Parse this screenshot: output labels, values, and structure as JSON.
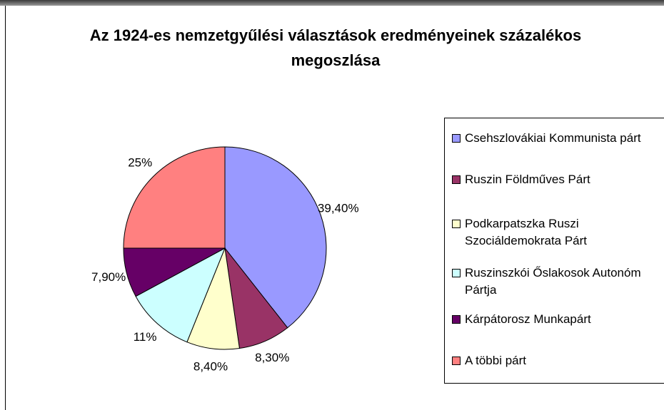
{
  "chart_data": {
    "type": "pie",
    "title": "Az 1924-es nemzetgyűlési választások eredményeinek százalékos megoszlása",
    "categories": [
      "Csehszlovákiai Kommunista párt",
      "Ruszin Földműves Párt",
      "Podkarpatszka Ruszi Szociáldemokrata Párt",
      "Ruszinszkói Őslakosok Autonóm Pártja",
      "Kárpátorosz Munkapárt",
      "A többi párt"
    ],
    "values": [
      39.4,
      8.3,
      8.4,
      11,
      7.9,
      25
    ],
    "value_labels": [
      "39,40%",
      "8,30%",
      "8,40%",
      "11%",
      "7,90%",
      "25%"
    ],
    "colors": [
      "#9999ff",
      "#993366",
      "#ffffcc",
      "#ccffff",
      "#660066",
      "#ff8080"
    ],
    "legend": "right"
  }
}
